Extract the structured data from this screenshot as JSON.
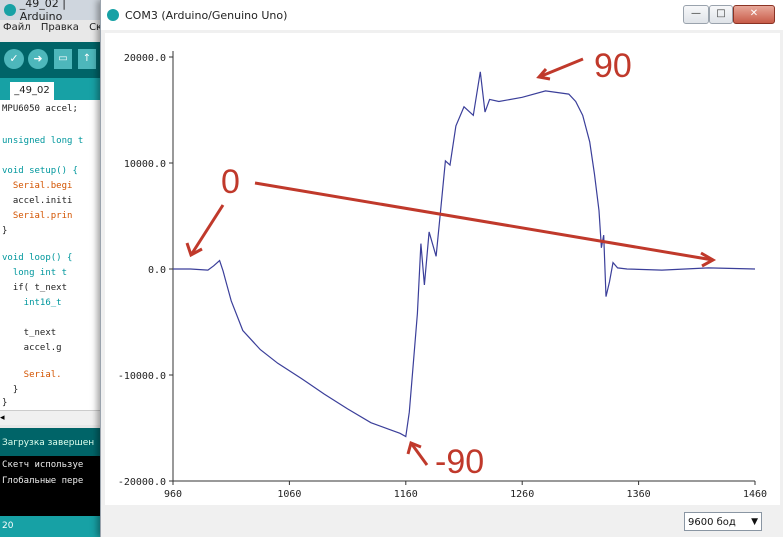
{
  "ide": {
    "title": "_49_02 | Arduino",
    "menu": [
      "Файл",
      "Правка",
      "Скет"
    ],
    "tab_label": "_49_02",
    "code_lines": [
      "MPU6050 accel;",
      "",
      "unsigned long t",
      "",
      "void setup() {",
      "  Serial.begi",
      "  accel.initi",
      "  Serial.prin",
      "}",
      "",
      "void loop() {",
      "  long int t",
      "  if( t_next",
      "    int16_t",
      "",
      "    t_next",
      "    accel.g",
      "",
      "    Serial.",
      "  }",
      "}"
    ],
    "status_text": "Загрузка завершен",
    "console_lines": [
      "Скетч используе",
      "Глобальные пере"
    ],
    "line_number": "20"
  },
  "plotter": {
    "title": "COM3 (Arduino/Genuino Uno)",
    "window_buttons": {
      "minimize": "—",
      "maximize": "□",
      "close": "✕"
    },
    "baud_rate": "9600 бод",
    "accent_color": "#17a1a5",
    "trace_color": "#3b3f9a",
    "annotation_color": "#c0392b"
  },
  "chart_data": {
    "type": "line",
    "xlim": [
      960,
      1460
    ],
    "ylim": [
      -20000,
      20000
    ],
    "x_ticks": [
      "960",
      "1060",
      "1160",
      "1260",
      "1360",
      "1460"
    ],
    "y_ticks": [
      "20000.0",
      "10000.0",
      "0.0",
      "-10000.0",
      "-20000.0"
    ],
    "grid": false,
    "series": [
      {
        "x": [
          960,
          975,
          990,
          995,
          1000,
          1003,
          1005,
          1010,
          1020,
          1035,
          1050,
          1070,
          1090,
          1110,
          1130,
          1145,
          1155,
          1160,
          1163,
          1166,
          1170,
          1173,
          1176,
          1180,
          1186,
          1190,
          1194,
          1198,
          1203,
          1210,
          1218,
          1224,
          1228,
          1232,
          1240,
          1260,
          1280,
          1300,
          1306,
          1312,
          1318,
          1322,
          1326,
          1328,
          1330,
          1332,
          1335,
          1338,
          1342,
          1350,
          1380,
          1420,
          1460
        ],
        "y": [
          0,
          0,
          -100,
          300,
          800,
          -200,
          -1000,
          -3000,
          -5800,
          -7600,
          -8900,
          -10300,
          -11800,
          -13200,
          -14500,
          -15100,
          -15500,
          -15800,
          -13500,
          -9500,
          -4200,
          2400,
          -1500,
          3500,
          1200,
          5600,
          10200,
          9800,
          13500,
          15300,
          14500,
          18600,
          14800,
          16000,
          15800,
          16200,
          16800,
          16500,
          15800,
          14500,
          12000,
          9000,
          5500,
          2000,
          3200,
          -2600,
          -1200,
          600,
          100,
          0,
          -100,
          100,
          0
        ]
      }
    ],
    "annotations": [
      "0",
      "90",
      "-90"
    ]
  }
}
